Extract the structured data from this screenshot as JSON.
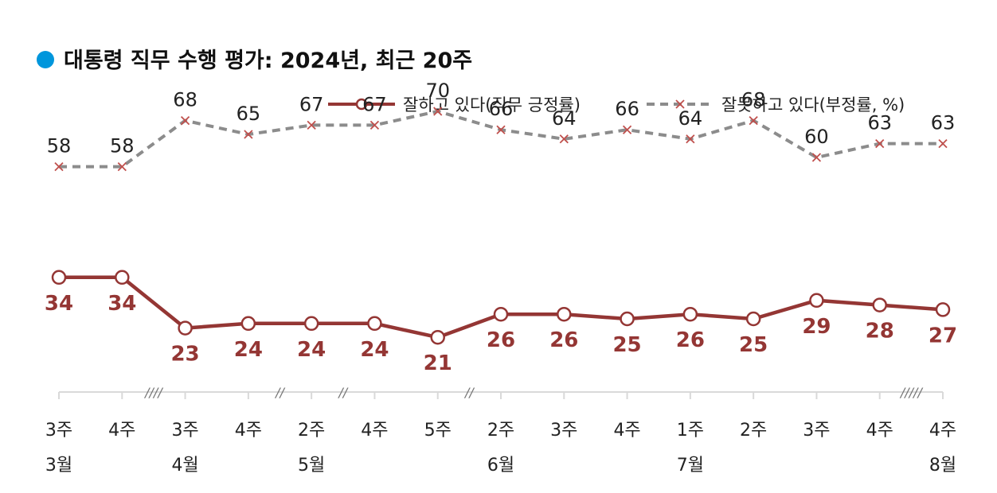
{
  "chart_data": {
    "type": "line",
    "title": "대통령 직무 수행 평가: 2024년, 최근 20주",
    "categories": [
      "3주",
      "4주",
      "3주",
      "4주",
      "2주",
      "4주",
      "5주",
      "2주",
      "3주",
      "4주",
      "1주",
      "2주",
      "3주",
      "4주",
      "4주"
    ],
    "months": [
      {
        "label": "3월",
        "index": 0
      },
      {
        "label": "4월",
        "index": 2
      },
      {
        "label": "5월",
        "index": 4
      },
      {
        "label": "6월",
        "index": 7
      },
      {
        "label": "7월",
        "index": 10
      },
      {
        "label": "8월",
        "index": 14
      }
    ],
    "breaks": [
      {
        "after": 1,
        "label": "////"
      },
      {
        "after": 3,
        "label": "//"
      },
      {
        "after": 4,
        "label": "//"
      },
      {
        "after": 6,
        "label": "//"
      },
      {
        "after": 13,
        "label": "/////"
      }
    ],
    "series": [
      {
        "name": "잘하고 있다(직무 긍정률)",
        "values": [
          34,
          34,
          23,
          24,
          24,
          24,
          21,
          26,
          26,
          25,
          26,
          25,
          29,
          28,
          27
        ],
        "color": "#943634",
        "marker": "circle",
        "style": "solid"
      },
      {
        "name": "잘못하고 있다(부정률, %)",
        "values": [
          58,
          58,
          68,
          65,
          67,
          67,
          70,
          66,
          64,
          66,
          64,
          68,
          60,
          63,
          63
        ],
        "color": "#8c8c8c",
        "marker": "x",
        "style": "dashed"
      }
    ],
    "title_dot_color": "#0096dc",
    "legend_position": "top-right",
    "grid": false
  }
}
